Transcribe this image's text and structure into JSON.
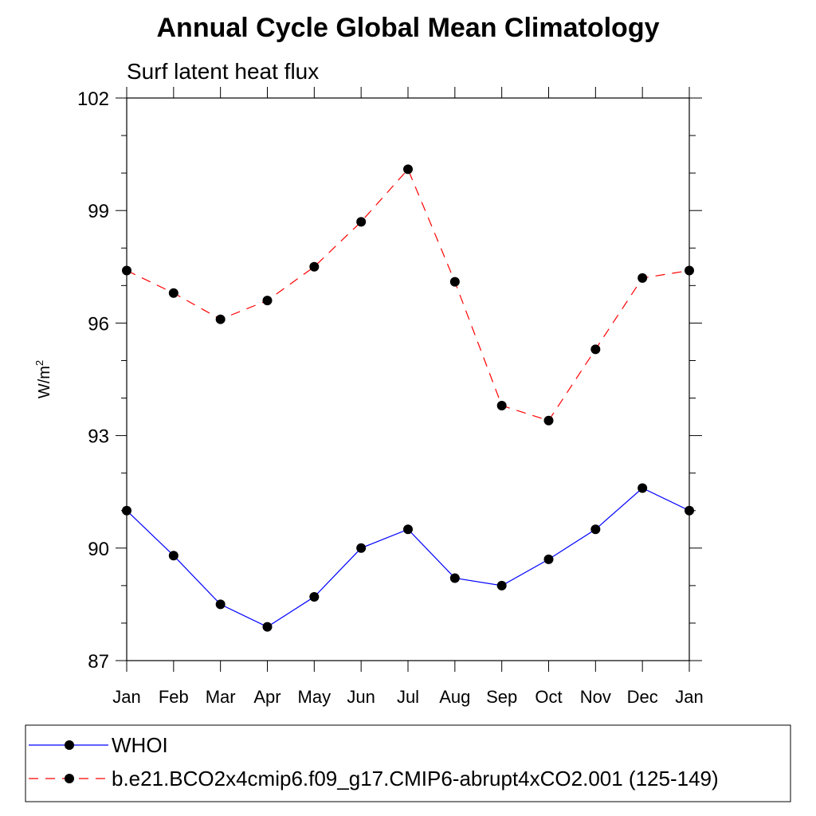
{
  "chart_data": {
    "type": "line",
    "title": "Annual Cycle Global Mean Climatology",
    "subtitle": "Surf latent heat flux",
    "ylabel": "W/m",
    "ylabel_sup": "2",
    "xlabel": "",
    "categories": [
      "Jan",
      "Feb",
      "Mar",
      "Apr",
      "May",
      "Jun",
      "Jul",
      "Aug",
      "Sep",
      "Oct",
      "Nov",
      "Dec",
      "Jan"
    ],
    "ylim": [
      87,
      102
    ],
    "yticks": [
      87,
      90,
      93,
      96,
      99,
      102
    ],
    "grid": false,
    "legend_position": "bottom",
    "series": [
      {
        "name": "WHOI",
        "color": "#0000ff",
        "dash": "solid",
        "marker": "circle",
        "values": [
          91.0,
          89.8,
          88.5,
          87.9,
          88.7,
          90.0,
          90.5,
          89.2,
          89.0,
          89.7,
          90.5,
          91.6,
          91.0
        ]
      },
      {
        "name": "b.e21.BCO2x4cmip6.f09_g17.CMIP6-abrupt4xCO2.001 (125-149)",
        "color": "#ff0000",
        "dash": "dashed",
        "marker": "circle",
        "values": [
          97.4,
          96.8,
          96.1,
          96.6,
          97.5,
          98.7,
          100.1,
          97.1,
          93.8,
          93.4,
          95.3,
          97.2,
          97.4
        ]
      }
    ]
  }
}
